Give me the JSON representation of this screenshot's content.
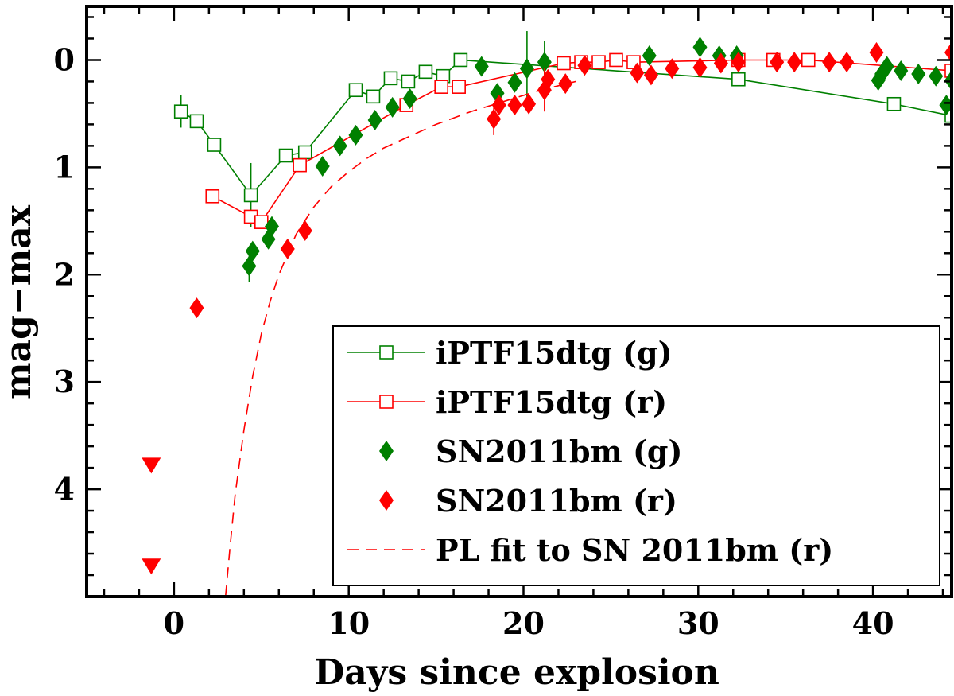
{
  "chart_data": {
    "type": "scatter",
    "xlabel": "Days since explosion",
    "ylabel": "mag−max",
    "xlim": [
      -5,
      44.5
    ],
    "ylim": [
      5.0,
      -0.5
    ],
    "y_inverted": true,
    "x_ticks": [
      0,
      10,
      20,
      30,
      40
    ],
    "y_ticks": [
      0,
      1,
      2,
      3,
      4
    ],
    "legend_position": "bottom-right",
    "grid": false,
    "series": [
      {
        "name": "iPTF15dtg (g)",
        "style": "line-open-square",
        "color": "#008000",
        "x": [
          0.4,
          1.3,
          2.3,
          4.4,
          6.4,
          7.5,
          10.4,
          11.4,
          12.4,
          13.4,
          14.4,
          15.4,
          16.4,
          32.3,
          41.2,
          44.5
        ],
        "y": [
          0.48,
          0.57,
          0.79,
          1.26,
          0.89,
          0.86,
          0.28,
          0.34,
          0.17,
          0.2,
          0.11,
          0.15,
          0.0,
          0.18,
          0.41,
          0.52
        ],
        "err": [
          0.15,
          0,
          0,
          0.3,
          0,
          0,
          0,
          0,
          0,
          0,
          0,
          0,
          0,
          0,
          0,
          0
        ]
      },
      {
        "name": "iPTF15dtg (r)",
        "style": "line-open-square",
        "color": "#ff0000",
        "x": [
          2.2,
          4.4,
          5.0,
          7.2,
          13.3,
          15.3,
          16.3,
          22.3,
          23.3,
          24.3,
          25.3,
          26.3,
          32.3,
          34.3,
          36.3,
          44.5
        ],
        "y": [
          1.27,
          1.46,
          1.51,
          0.98,
          0.42,
          0.25,
          0.25,
          0.03,
          0.02,
          0.02,
          0.0,
          0.02,
          0.0,
          0.0,
          0.0,
          0.1
        ],
        "err": [
          0,
          0,
          0,
          0,
          0,
          0,
          0,
          0,
          0,
          0,
          0,
          0,
          0,
          0,
          0,
          0
        ]
      },
      {
        "name": "SN2011bm (g)",
        "style": "filled-diamond",
        "color": "#008000",
        "x": [
          4.3,
          4.5,
          5.4,
          5.6,
          8.5,
          9.5,
          10.4,
          11.5,
          12.5,
          13.5,
          17.6,
          18.5,
          19.5,
          20.2,
          21.2,
          27.2,
          30.1,
          31.2,
          32.2,
          40.3,
          40.5,
          40.8,
          41.6,
          42.6,
          43.6,
          44.2,
          44.5
        ],
        "y": [
          1.92,
          1.78,
          1.67,
          1.55,
          0.99,
          0.8,
          0.7,
          0.56,
          0.44,
          0.36,
          0.06,
          0.31,
          0.21,
          0.08,
          0.02,
          -0.04,
          -0.12,
          -0.04,
          -0.04,
          0.19,
          0.13,
          0.06,
          0.1,
          0.13,
          0.15,
          0.42,
          0.19
        ],
        "err": [
          0.15,
          0,
          0,
          0,
          0,
          0,
          0,
          0,
          0,
          0,
          0,
          0,
          0,
          0.35,
          0.2,
          0,
          0,
          0,
          0,
          0,
          0,
          0,
          0,
          0,
          0,
          0,
          0
        ]
      },
      {
        "name": "SN2011bm (r)",
        "style": "filled-diamond",
        "color": "#ff0000",
        "x": [
          1.3,
          6.5,
          7.5,
          18.3,
          18.6,
          19.5,
          20.3,
          21.2,
          21.4,
          22.4,
          23.5,
          26.5,
          27.3,
          28.5,
          30.1,
          31.3,
          32.3,
          34.5,
          35.5,
          37.5,
          38.5,
          40.2,
          44.5
        ],
        "y": [
          2.31,
          1.76,
          1.59,
          0.55,
          0.42,
          0.42,
          0.41,
          0.28,
          0.18,
          0.22,
          0.05,
          0.12,
          0.14,
          0.08,
          0.07,
          0.03,
          0.02,
          0.02,
          0.02,
          0.02,
          0.02,
          -0.07,
          -0.07
        ],
        "err": [
          0,
          0,
          0,
          0.15,
          0,
          0,
          0,
          0.2,
          0,
          0,
          0,
          0,
          0,
          0,
          0,
          0,
          0,
          0,
          0,
          0,
          0,
          0,
          0
        ]
      },
      {
        "name": "PL fit to SN 2011bm (r)",
        "style": "dashed-line",
        "color": "#ff0000",
        "x": [
          2.95,
          3.2,
          3.5,
          4.0,
          4.5,
          5.0,
          5.5,
          6.0,
          7.0,
          8.0,
          9.0,
          10.0,
          11.0,
          12.0,
          13.5,
          15.0,
          17.0,
          19.0,
          21.0,
          23.0
        ],
        "y": [
          5.0,
          4.55,
          4.05,
          3.45,
          2.95,
          2.55,
          2.25,
          2.0,
          1.62,
          1.37,
          1.18,
          1.04,
          0.92,
          0.82,
          0.71,
          0.6,
          0.48,
          0.38,
          0.28,
          0.2
        ]
      },
      {
        "name": "",
        "style": "filled-down-triangle",
        "color": "#ff0000",
        "x": [
          -1.3,
          -1.3
        ],
        "y": [
          3.78,
          4.72
        ]
      }
    ]
  }
}
